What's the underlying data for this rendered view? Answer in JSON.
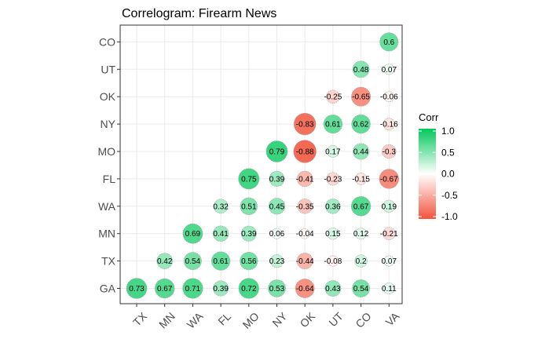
{
  "chart_data": {
    "type": "correlogram",
    "title": "Correlogram: Firearm News",
    "x_categories": [
      "TX",
      "MN",
      "WA",
      "FL",
      "MO",
      "NY",
      "OK",
      "UT",
      "CO",
      "VA"
    ],
    "y_categories": [
      "GA",
      "TX",
      "MN",
      "WA",
      "FL",
      "MO",
      "NY",
      "OK",
      "UT",
      "CO"
    ],
    "cells": [
      {
        "x": "TX",
        "y": "GA",
        "value": 0.73,
        "label": "0.73"
      },
      {
        "x": "MN",
        "y": "GA",
        "value": 0.67,
        "label": "0.67"
      },
      {
        "x": "WA",
        "y": "GA",
        "value": 0.71,
        "label": "0.71"
      },
      {
        "x": "FL",
        "y": "GA",
        "value": 0.39,
        "label": "0.39"
      },
      {
        "x": "MO",
        "y": "GA",
        "value": 0.72,
        "label": "0.72"
      },
      {
        "x": "NY",
        "y": "GA",
        "value": 0.53,
        "label": "0.53"
      },
      {
        "x": "OK",
        "y": "GA",
        "value": -0.64,
        "label": "-0.64"
      },
      {
        "x": "UT",
        "y": "GA",
        "value": 0.43,
        "label": "0.43"
      },
      {
        "x": "CO",
        "y": "GA",
        "value": 0.54,
        "label": "0.54"
      },
      {
        "x": "VA",
        "y": "GA",
        "value": 0.11,
        "label": "0.11"
      },
      {
        "x": "MN",
        "y": "TX",
        "value": 0.42,
        "label": "0.42"
      },
      {
        "x": "WA",
        "y": "TX",
        "value": 0.54,
        "label": "0.54"
      },
      {
        "x": "FL",
        "y": "TX",
        "value": 0.61,
        "label": "0.61"
      },
      {
        "x": "MO",
        "y": "TX",
        "value": 0.56,
        "label": "0.56"
      },
      {
        "x": "NY",
        "y": "TX",
        "value": 0.23,
        "label": "0.23"
      },
      {
        "x": "OK",
        "y": "TX",
        "value": -0.44,
        "label": "-0.44"
      },
      {
        "x": "UT",
        "y": "TX",
        "value": -0.08,
        "label": "-0.08"
      },
      {
        "x": "CO",
        "y": "TX",
        "value": 0.2,
        "label": "0.2"
      },
      {
        "x": "VA",
        "y": "TX",
        "value": 0.07,
        "label": "0.07"
      },
      {
        "x": "WA",
        "y": "MN",
        "value": 0.69,
        "label": "0.69"
      },
      {
        "x": "FL",
        "y": "MN",
        "value": 0.41,
        "label": "0.41"
      },
      {
        "x": "MO",
        "y": "MN",
        "value": 0.39,
        "label": "0.39"
      },
      {
        "x": "NY",
        "y": "MN",
        "value": 0.06,
        "label": "0.06"
      },
      {
        "x": "OK",
        "y": "MN",
        "value": -0.04,
        "label": "-0.04"
      },
      {
        "x": "UT",
        "y": "MN",
        "value": 0.15,
        "label": "0.15"
      },
      {
        "x": "CO",
        "y": "MN",
        "value": 0.12,
        "label": "0.12"
      },
      {
        "x": "VA",
        "y": "MN",
        "value": -0.21,
        "label": "-0.21"
      },
      {
        "x": "FL",
        "y": "WA",
        "value": 0.32,
        "label": "0.32"
      },
      {
        "x": "MO",
        "y": "WA",
        "value": 0.51,
        "label": "0.51"
      },
      {
        "x": "NY",
        "y": "WA",
        "value": 0.45,
        "label": "0.45"
      },
      {
        "x": "OK",
        "y": "WA",
        "value": -0.35,
        "label": "-0.35"
      },
      {
        "x": "UT",
        "y": "WA",
        "value": 0.36,
        "label": "0.36"
      },
      {
        "x": "CO",
        "y": "WA",
        "value": 0.67,
        "label": "0.67"
      },
      {
        "x": "VA",
        "y": "WA",
        "value": 0.19,
        "label": "0.19"
      },
      {
        "x": "MO",
        "y": "FL",
        "value": 0.75,
        "label": "0.75"
      },
      {
        "x": "NY",
        "y": "FL",
        "value": 0.39,
        "label": "0.39"
      },
      {
        "x": "OK",
        "y": "FL",
        "value": -0.41,
        "label": "-0.41"
      },
      {
        "x": "UT",
        "y": "FL",
        "value": -0.23,
        "label": "-0.23"
      },
      {
        "x": "CO",
        "y": "FL",
        "value": -0.15,
        "label": "-0.15"
      },
      {
        "x": "VA",
        "y": "FL",
        "value": -0.67,
        "label": "-0.67"
      },
      {
        "x": "NY",
        "y": "MO",
        "value": 0.79,
        "label": "0.79"
      },
      {
        "x": "OK",
        "y": "MO",
        "value": -0.88,
        "label": "-0.88"
      },
      {
        "x": "UT",
        "y": "MO",
        "value": 0.17,
        "label": "0.17"
      },
      {
        "x": "CO",
        "y": "MO",
        "value": 0.44,
        "label": "0.44"
      },
      {
        "x": "VA",
        "y": "MO",
        "value": -0.3,
        "label": "-0.3"
      },
      {
        "x": "OK",
        "y": "NY",
        "value": -0.83,
        "label": "-0.83"
      },
      {
        "x": "UT",
        "y": "NY",
        "value": 0.61,
        "label": "0.61"
      },
      {
        "x": "CO",
        "y": "NY",
        "value": 0.62,
        "label": "0.62"
      },
      {
        "x": "VA",
        "y": "NY",
        "value": -0.16,
        "label": "-0.16"
      },
      {
        "x": "UT",
        "y": "OK",
        "value": -0.25,
        "label": "-0.25"
      },
      {
        "x": "CO",
        "y": "OK",
        "value": -0.65,
        "label": "-0.65"
      },
      {
        "x": "VA",
        "y": "OK",
        "value": -0.06,
        "label": "-0.06"
      },
      {
        "x": "CO",
        "y": "UT",
        "value": 0.48,
        "label": "0.48"
      },
      {
        "x": "VA",
        "y": "UT",
        "value": 0.07,
        "label": "0.07"
      },
      {
        "x": "VA",
        "y": "CO",
        "value": 0.6,
        "label": "0.6"
      }
    ],
    "legend": {
      "title": "Corr",
      "ticks": [
        1.0,
        0.5,
        0.0,
        -0.5,
        -1.0
      ],
      "tick_labels": [
        "1.0",
        "0.5",
        "0.0",
        "-0.5",
        "-1.0"
      ],
      "placement": "right"
    },
    "colors": {
      "high": "#00c85a",
      "mid": "#ffffff",
      "low": "#f2543d",
      "panel_border": "#333333",
      "grid": "#ebebeb",
      "circle_outline": "#9a9a9a"
    },
    "grid": true
  }
}
